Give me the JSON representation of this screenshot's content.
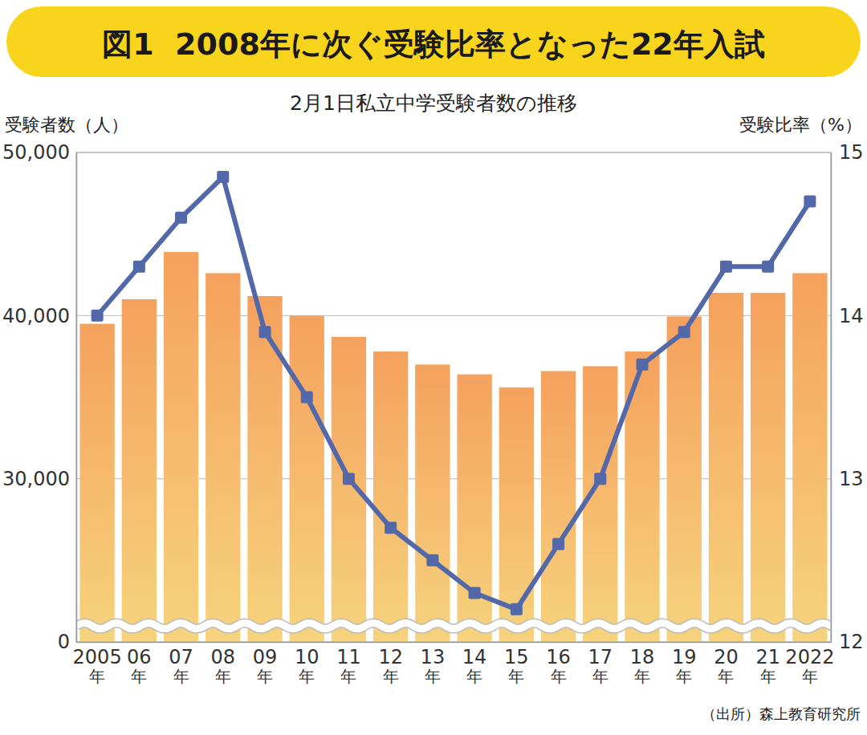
{
  "chart_data": {
    "type": "bar",
    "title": "図1  2008年に次ぐ受験比率となった22年入試",
    "subtitle": "2月1日私立中学受験者数の推移",
    "y_label": "受験者数（人）",
    "y2_label": "受験比率（%）",
    "source": "（出所）森上教育研究所",
    "categories": [
      "2005年",
      "06年",
      "07年",
      "08年",
      "09年",
      "10年",
      "11年",
      "12年",
      "13年",
      "14年",
      "15年",
      "16年",
      "17年",
      "18年",
      "19年",
      "20年",
      "21年",
      "2022年"
    ],
    "series": [
      {
        "type": "bar",
        "color": "#f5a15e",
        "axis": "y",
        "values": [
          39500,
          41000,
          43900,
          42600,
          41200,
          40000,
          38700,
          37800,
          37000,
          36400,
          35600,
          36600,
          36900,
          37800,
          39950,
          41400,
          41400,
          42600
        ]
      },
      {
        "type": "line",
        "color": "#5268a8",
        "axis": "y2",
        "marker": "square",
        "line_style": "solid",
        "values": [
          14.0,
          14.3,
          14.6,
          14.85,
          13.9,
          13.5,
          13.0,
          12.7,
          12.5,
          12.3,
          12.2,
          12.6,
          13.0,
          13.7,
          13.9,
          14.3,
          14.3,
          14.7
        ]
      }
    ],
    "ylim": [
      0,
      50000
    ],
    "yticks": [
      0,
      {
        "value": 30000,
        "label": "30,000"
      },
      {
        "value": 40000,
        "label": "40,000"
      },
      {
        "value": 50000,
        "label": "50,000"
      }
    ],
    "y2lim": [
      12,
      15
    ],
    "y2ticks": [
      12,
      13,
      14,
      15
    ],
    "grid": true
  }
}
